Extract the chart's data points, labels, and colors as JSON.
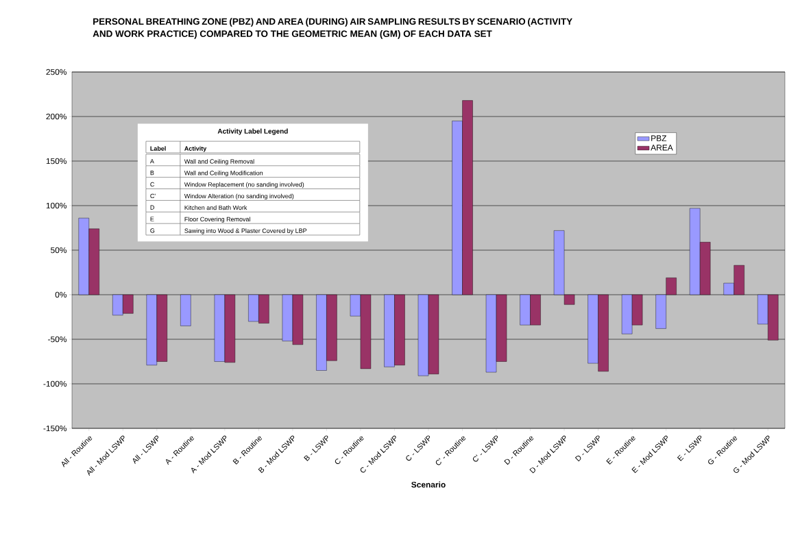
{
  "chart_data": {
    "type": "bar",
    "title": "PERSONAL BREATHING ZONE (PBZ) AND AREA (DURING) AIR SAMPLING RESULTS BY SCENARIO (ACTIVITY AND WORK PRACTICE) COMPARED TO THE GEOMETRIC MEAN (GM) OF EACH DATA SET",
    "xlabel": "Scenario",
    "categories": [
      "All - Routine",
      "All - Mod LSWP",
      "All - LSWP",
      "A - Routine",
      "A - Mod LSWP",
      "B - Routine",
      "B - Mod LSWP",
      "B - LSWP",
      "C - Routine",
      "C - Mod LSWP",
      "C - LSWP",
      "C' - Routine",
      "C' - LSWP",
      "D - Routine",
      "D - Mod LSWP",
      "D - LSWP",
      "E - Routine",
      "E - Mod LSWP",
      "E - LSWP",
      "G - Routine",
      "G - Mod LSWP"
    ],
    "series": [
      {
        "name": "PBZ",
        "color": "#9999ff",
        "values": [
          86,
          -23,
          -79,
          -35,
          -75,
          -30,
          -52,
          -85,
          -24,
          -81,
          -91,
          195,
          -87,
          -34,
          72,
          -77,
          -44,
          -38,
          97,
          13,
          -33
        ]
      },
      {
        "name": "AREA",
        "color": "#993366",
        "values": [
          74,
          -21,
          -75,
          null,
          -76,
          -32,
          -56,
          -74,
          -83,
          -79,
          -89,
          218,
          -75,
          -34,
          -11,
          -86,
          -34,
          19,
          59,
          33,
          -51
        ]
      }
    ],
    "ylim": [
      -150,
      250
    ],
    "yticks": [
      {
        "value": -150,
        "label": "-150%"
      },
      {
        "value": -100,
        "label": "-100%"
      },
      {
        "value": -50,
        "label": "-50%"
      },
      {
        "value": 0,
        "label": "0%"
      },
      {
        "value": 50,
        "label": "50%"
      },
      {
        "value": 100,
        "label": "100%"
      },
      {
        "value": 150,
        "label": "150%"
      },
      {
        "value": 200,
        "label": "200%"
      },
      {
        "value": 250,
        "label": "250%"
      }
    ],
    "grid": "y",
    "legend": "top right",
    "annotations": [
      "Activity Label Legend",
      "Label",
      "Activity",
      "A",
      "Wall and Ceiling Removal",
      "B",
      "Wall and Ceiling Modification",
      "C",
      "Window Replacement (no sanding involved)",
      "C'",
      "Window Alteration (no sanding involved)",
      "D",
      "Kitchen and Bath Work",
      "E",
      "Floor Covering Removal",
      "G",
      "Sawing into Wood & Plaster Covered by LBP"
    ]
  }
}
